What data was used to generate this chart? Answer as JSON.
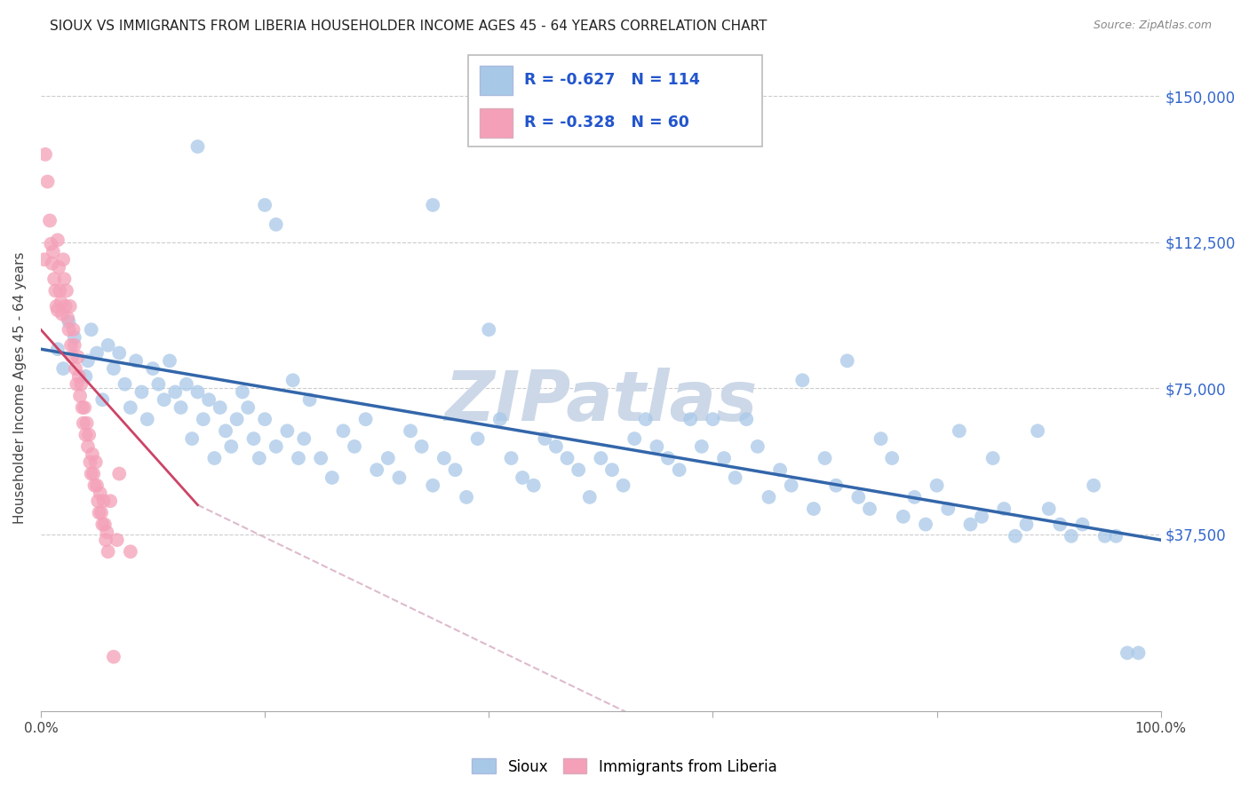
{
  "title": "SIOUX VS IMMIGRANTS FROM LIBERIA HOUSEHOLDER INCOME AGES 45 - 64 YEARS CORRELATION CHART",
  "source": "Source: ZipAtlas.com",
  "ylabel": "Householder Income Ages 45 - 64 years",
  "ytick_labels": [
    "$37,500",
    "$75,000",
    "$112,500",
    "$150,000"
  ],
  "ytick_values": [
    37500,
    75000,
    112500,
    150000
  ],
  "ylim": [
    -8000,
    158000
  ],
  "xlim": [
    0.0,
    1.0
  ],
  "sioux_color": "#a8c8e8",
  "liberia_color": "#f4a0b8",
  "sioux_line_color": "#3366aa",
  "liberia_line_color_solid": "#cc4466",
  "liberia_line_color_dash": "#ddbbcc",
  "legend_r_color": "#2255cc",
  "legend_n_color": "#2255cc",
  "sioux_R": -0.627,
  "sioux_N": 114,
  "liberia_R": -0.328,
  "liberia_N": 60,
  "sioux_trend": [
    0.0,
    85000,
    1.0,
    36000
  ],
  "liberia_trend_solid": [
    0.0,
    90000,
    0.14,
    45000
  ],
  "liberia_trend_dash": [
    0.14,
    45000,
    0.55,
    -12000
  ],
  "sioux_scatter": [
    [
      0.015,
      85000
    ],
    [
      0.02,
      80000
    ],
    [
      0.025,
      92000
    ],
    [
      0.03,
      88000
    ],
    [
      0.04,
      78000
    ],
    [
      0.042,
      82000
    ],
    [
      0.045,
      90000
    ],
    [
      0.05,
      84000
    ],
    [
      0.055,
      72000
    ],
    [
      0.06,
      86000
    ],
    [
      0.065,
      80000
    ],
    [
      0.07,
      84000
    ],
    [
      0.075,
      76000
    ],
    [
      0.08,
      70000
    ],
    [
      0.085,
      82000
    ],
    [
      0.09,
      74000
    ],
    [
      0.095,
      67000
    ],
    [
      0.1,
      80000
    ],
    [
      0.105,
      76000
    ],
    [
      0.11,
      72000
    ],
    [
      0.115,
      82000
    ],
    [
      0.12,
      74000
    ],
    [
      0.125,
      70000
    ],
    [
      0.13,
      76000
    ],
    [
      0.135,
      62000
    ],
    [
      0.14,
      74000
    ],
    [
      0.145,
      67000
    ],
    [
      0.15,
      72000
    ],
    [
      0.155,
      57000
    ],
    [
      0.16,
      70000
    ],
    [
      0.165,
      64000
    ],
    [
      0.17,
      60000
    ],
    [
      0.175,
      67000
    ],
    [
      0.18,
      74000
    ],
    [
      0.185,
      70000
    ],
    [
      0.19,
      62000
    ],
    [
      0.195,
      57000
    ],
    [
      0.2,
      67000
    ],
    [
      0.21,
      60000
    ],
    [
      0.22,
      64000
    ],
    [
      0.225,
      77000
    ],
    [
      0.23,
      57000
    ],
    [
      0.235,
      62000
    ],
    [
      0.24,
      72000
    ],
    [
      0.25,
      57000
    ],
    [
      0.26,
      52000
    ],
    [
      0.27,
      64000
    ],
    [
      0.28,
      60000
    ],
    [
      0.29,
      67000
    ],
    [
      0.3,
      54000
    ],
    [
      0.31,
      57000
    ],
    [
      0.32,
      52000
    ],
    [
      0.33,
      64000
    ],
    [
      0.34,
      60000
    ],
    [
      0.35,
      50000
    ],
    [
      0.36,
      57000
    ],
    [
      0.37,
      54000
    ],
    [
      0.38,
      47000
    ],
    [
      0.39,
      62000
    ],
    [
      0.4,
      90000
    ],
    [
      0.41,
      67000
    ],
    [
      0.42,
      57000
    ],
    [
      0.43,
      52000
    ],
    [
      0.44,
      50000
    ],
    [
      0.45,
      62000
    ],
    [
      0.46,
      60000
    ],
    [
      0.47,
      57000
    ],
    [
      0.48,
      54000
    ],
    [
      0.49,
      47000
    ],
    [
      0.5,
      57000
    ],
    [
      0.51,
      54000
    ],
    [
      0.52,
      50000
    ],
    [
      0.53,
      62000
    ],
    [
      0.54,
      67000
    ],
    [
      0.55,
      60000
    ],
    [
      0.56,
      57000
    ],
    [
      0.57,
      54000
    ],
    [
      0.58,
      67000
    ],
    [
      0.59,
      60000
    ],
    [
      0.6,
      67000
    ],
    [
      0.61,
      57000
    ],
    [
      0.62,
      52000
    ],
    [
      0.63,
      67000
    ],
    [
      0.64,
      60000
    ],
    [
      0.65,
      47000
    ],
    [
      0.66,
      54000
    ],
    [
      0.67,
      50000
    ],
    [
      0.68,
      77000
    ],
    [
      0.69,
      44000
    ],
    [
      0.7,
      57000
    ],
    [
      0.71,
      50000
    ],
    [
      0.72,
      82000
    ],
    [
      0.73,
      47000
    ],
    [
      0.74,
      44000
    ],
    [
      0.75,
      62000
    ],
    [
      0.76,
      57000
    ],
    [
      0.77,
      42000
    ],
    [
      0.78,
      47000
    ],
    [
      0.79,
      40000
    ],
    [
      0.8,
      50000
    ],
    [
      0.81,
      44000
    ],
    [
      0.82,
      64000
    ],
    [
      0.83,
      40000
    ],
    [
      0.84,
      42000
    ],
    [
      0.85,
      57000
    ],
    [
      0.86,
      44000
    ],
    [
      0.87,
      37000
    ],
    [
      0.88,
      40000
    ],
    [
      0.89,
      64000
    ],
    [
      0.9,
      44000
    ],
    [
      0.91,
      40000
    ],
    [
      0.92,
      37000
    ],
    [
      0.93,
      40000
    ],
    [
      0.94,
      50000
    ],
    [
      0.95,
      37000
    ],
    [
      0.96,
      37000
    ],
    [
      0.97,
      7000
    ],
    [
      0.98,
      7000
    ],
    [
      0.14,
      137000
    ],
    [
      0.2,
      122000
    ],
    [
      0.21,
      117000
    ],
    [
      0.35,
      122000
    ]
  ],
  "liberia_scatter": [
    [
      0.004,
      135000
    ],
    [
      0.006,
      128000
    ],
    [
      0.008,
      118000
    ],
    [
      0.009,
      112000
    ],
    [
      0.01,
      107000
    ],
    [
      0.011,
      110000
    ],
    [
      0.012,
      103000
    ],
    [
      0.013,
      100000
    ],
    [
      0.014,
      96000
    ],
    [
      0.015,
      113000
    ],
    [
      0.016,
      106000
    ],
    [
      0.017,
      100000
    ],
    [
      0.018,
      97000
    ],
    [
      0.019,
      94000
    ],
    [
      0.02,
      108000
    ],
    [
      0.021,
      103000
    ],
    [
      0.022,
      96000
    ],
    [
      0.023,
      100000
    ],
    [
      0.024,
      93000
    ],
    [
      0.025,
      90000
    ],
    [
      0.026,
      96000
    ],
    [
      0.027,
      86000
    ],
    [
      0.028,
      83000
    ],
    [
      0.029,
      90000
    ],
    [
      0.03,
      86000
    ],
    [
      0.031,
      80000
    ],
    [
      0.032,
      76000
    ],
    [
      0.033,
      83000
    ],
    [
      0.034,
      78000
    ],
    [
      0.035,
      73000
    ],
    [
      0.036,
      76000
    ],
    [
      0.037,
      70000
    ],
    [
      0.038,
      66000
    ],
    [
      0.039,
      70000
    ],
    [
      0.04,
      63000
    ],
    [
      0.041,
      66000
    ],
    [
      0.042,
      60000
    ],
    [
      0.043,
      63000
    ],
    [
      0.044,
      56000
    ],
    [
      0.045,
      53000
    ],
    [
      0.046,
      58000
    ],
    [
      0.047,
      53000
    ],
    [
      0.048,
      50000
    ],
    [
      0.049,
      56000
    ],
    [
      0.05,
      50000
    ],
    [
      0.051,
      46000
    ],
    [
      0.052,
      43000
    ],
    [
      0.053,
      48000
    ],
    [
      0.055,
      40000
    ],
    [
      0.056,
      46000
    ],
    [
      0.057,
      40000
    ],
    [
      0.058,
      36000
    ],
    [
      0.06,
      33000
    ],
    [
      0.062,
      46000
    ],
    [
      0.065,
      6000
    ],
    [
      0.003,
      108000
    ],
    [
      0.07,
      53000
    ],
    [
      0.08,
      33000
    ],
    [
      0.068,
      36000
    ],
    [
      0.059,
      38000
    ],
    [
      0.054,
      43000
    ],
    [
      0.015,
      95000
    ]
  ],
  "background_color": "#ffffff",
  "grid_color": "#cccccc",
  "title_fontsize": 11,
  "axis_label_fontsize": 11,
  "tick_fontsize": 11,
  "watermark_text": "ZIPatlas",
  "watermark_color": "#ccd8e8",
  "watermark_fontsize": 56
}
